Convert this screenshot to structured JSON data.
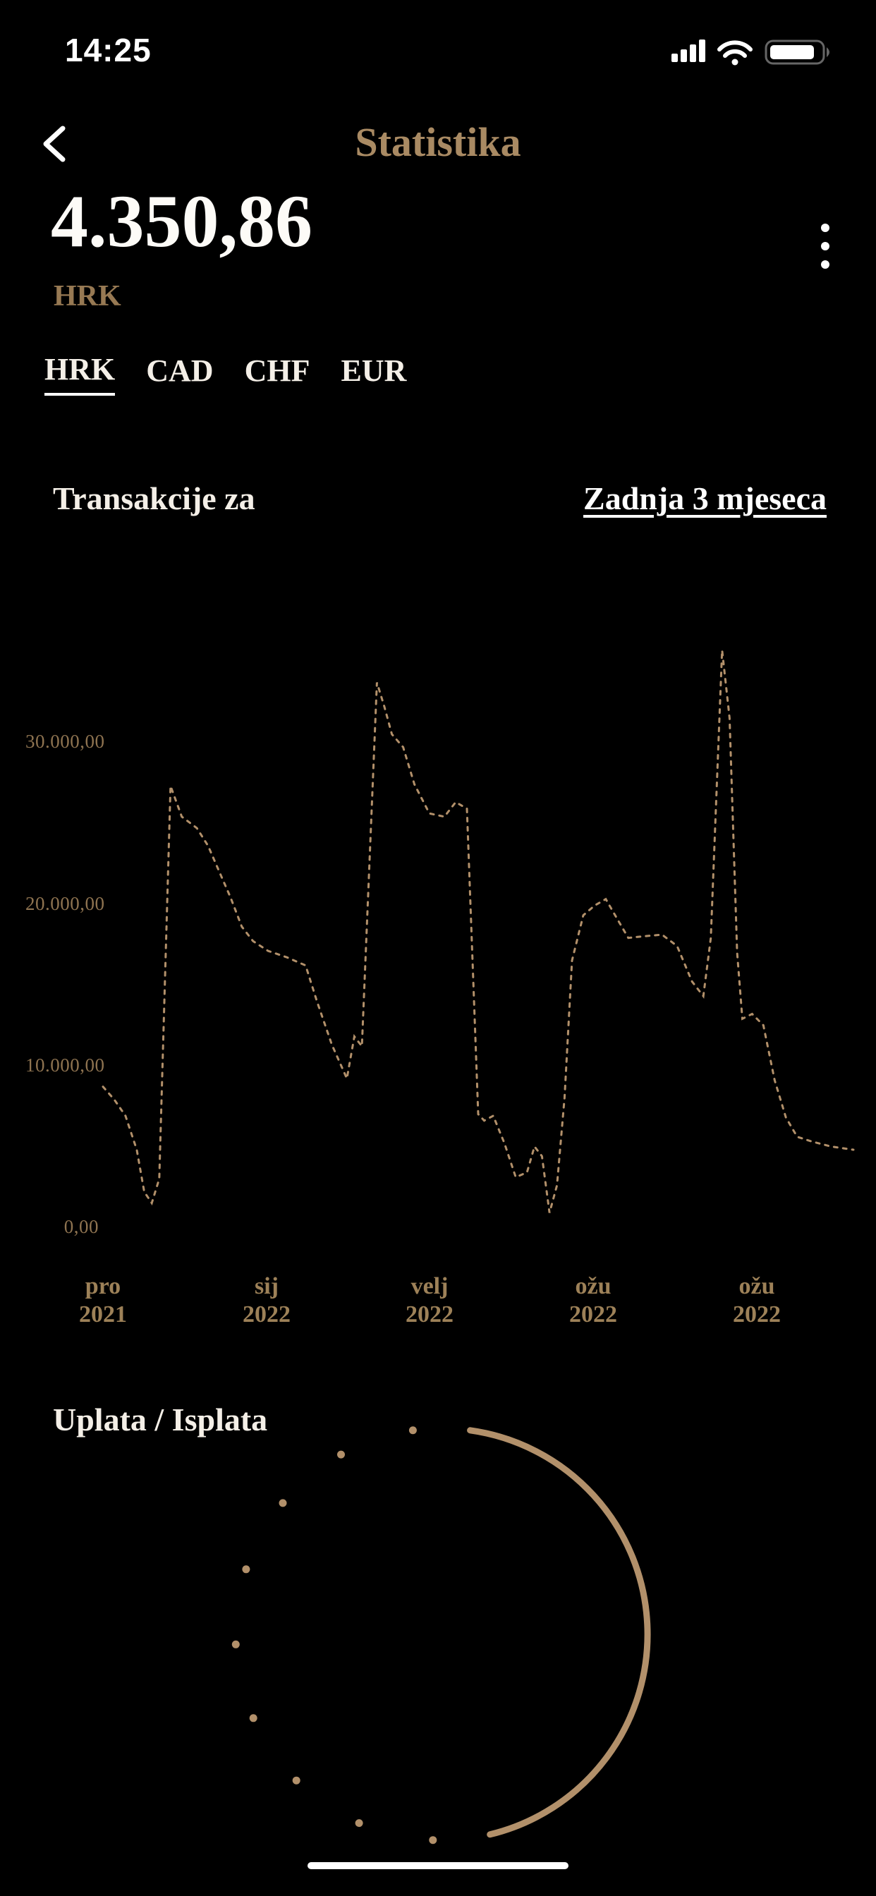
{
  "status_bar": {
    "time": "14:25",
    "icons": [
      "cellular-signal-icon",
      "wifi-icon",
      "battery-icon"
    ]
  },
  "header": {
    "title": "Statistika"
  },
  "balance": {
    "amount": "4.350,86",
    "currency": "HRK"
  },
  "currency_tabs": [
    {
      "label": "HRK",
      "active": true
    },
    {
      "label": "CAD",
      "active": false
    },
    {
      "label": "CHF",
      "active": false
    },
    {
      "label": "EUR",
      "active": false
    }
  ],
  "transactions_filter": {
    "label": "Transakcije za",
    "value": "Zadnja 3 mjeseca"
  },
  "colors": {
    "background": "#000000",
    "accent": "#b2906a",
    "line": "#b2906a",
    "accent_muted": "#9d8158",
    "text": "#f7f3ec"
  },
  "chart_data": [
    {
      "type": "line",
      "title": "Transakcije za – Zadnja 3 mjeseca",
      "line_style": "dashed",
      "grid": false,
      "legend": false,
      "ylabel": "",
      "xlabel": "",
      "ylim": [
        0,
        37500
      ],
      "y_ticks": [
        "0,00",
        "10.000,00",
        "20.000,00",
        "30.000,00"
      ],
      "y_tick_values": [
        0,
        10000,
        20000,
        30000
      ],
      "x_categories": [
        {
          "month": "pro",
          "year": "2021"
        },
        {
          "month": "sij",
          "year": "2022"
        },
        {
          "month": "velj",
          "year": "2022"
        },
        {
          "month": "ožu",
          "year": "2022"
        },
        {
          "month": "ožu",
          "year": "2022"
        }
      ],
      "points": [
        [
          0,
          8700
        ],
        [
          1.5,
          7900
        ],
        [
          3,
          6900
        ],
        [
          4.5,
          4800
        ],
        [
          5.5,
          2200
        ],
        [
          6.5,
          1500
        ],
        [
          7.5,
          3000
        ],
        [
          9,
          27300
        ],
        [
          10.5,
          25400
        ],
        [
          12.5,
          24700
        ],
        [
          14,
          23600
        ],
        [
          15.5,
          22000
        ],
        [
          17,
          20400
        ],
        [
          18.5,
          18600
        ],
        [
          20,
          17700
        ],
        [
          22,
          17100
        ],
        [
          24.5,
          16700
        ],
        [
          27,
          16200
        ],
        [
          28.5,
          14000
        ],
        [
          30.5,
          11300
        ],
        [
          32.5,
          9200
        ],
        [
          33.5,
          11800
        ],
        [
          34.5,
          11200
        ],
        [
          36.5,
          33700
        ],
        [
          37.5,
          32200
        ],
        [
          38.5,
          30500
        ],
        [
          40,
          29700
        ],
        [
          41.5,
          27400
        ],
        [
          43.5,
          25600
        ],
        [
          45.5,
          25400
        ],
        [
          47,
          26300
        ],
        [
          48.5,
          25900
        ],
        [
          50,
          7000
        ],
        [
          50.8,
          6600
        ],
        [
          52,
          6900
        ],
        [
          53.5,
          5200
        ],
        [
          55,
          3100
        ],
        [
          56.5,
          3400
        ],
        [
          57.5,
          5000
        ],
        [
          58.5,
          4400
        ],
        [
          59.5,
          900
        ],
        [
          60.5,
          2600
        ],
        [
          61.5,
          8000
        ],
        [
          62.5,
          16500
        ],
        [
          64,
          19300
        ],
        [
          65.5,
          19900
        ],
        [
          67,
          20300
        ],
        [
          68.5,
          19100
        ],
        [
          70,
          17900
        ],
        [
          72,
          18000
        ],
        [
          74.5,
          18100
        ],
        [
          76.5,
          17400
        ],
        [
          78.5,
          15200
        ],
        [
          80,
          14300
        ],
        [
          81,
          17900
        ],
        [
          82.5,
          35700
        ],
        [
          83.5,
          31500
        ],
        [
          84.5,
          17000
        ],
        [
          85.2,
          12900
        ],
        [
          86.5,
          13200
        ],
        [
          88,
          12500
        ],
        [
          89.5,
          9100
        ],
        [
          91,
          6800
        ],
        [
          92.5,
          5600
        ],
        [
          94.5,
          5300
        ],
        [
          97,
          5000
        ],
        [
          100,
          4800
        ]
      ]
    },
    {
      "type": "donut",
      "title": "Uplata / Isplata",
      "legend": false,
      "segments": [
        {
          "name": "uplata",
          "style": "solid",
          "fraction": 0.44
        },
        {
          "name": "isplata",
          "style": "dotted",
          "fraction": 0.56
        }
      ],
      "dot_count": 9
    }
  ]
}
